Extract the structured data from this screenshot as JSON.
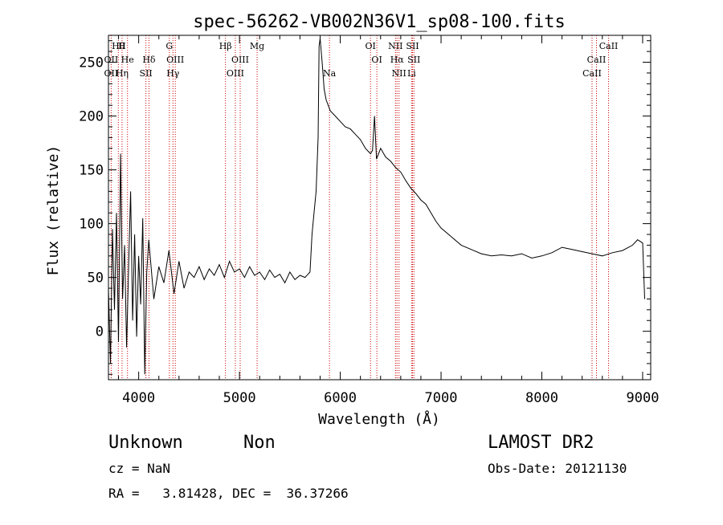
{
  "chart_data": {
    "type": "line",
    "title": "spec-56262-VB002N36V1_sp08-100.fits",
    "xlabel": "Wavelength (Å)",
    "ylabel": "Flux (relative)",
    "xlim": [
      3700,
      9080
    ],
    "ylim": [
      -45,
      275
    ],
    "x_ticks": [
      4000,
      5000,
      6000,
      7000,
      8000,
      9000
    ],
    "y_ticks": [
      0,
      50,
      100,
      150,
      200,
      250
    ],
    "grid": false,
    "series": [
      {
        "x": [
          3700,
          3720,
          3740,
          3760,
          3780,
          3800,
          3820,
          3840,
          3860,
          3880,
          3900,
          3920,
          3940,
          3960,
          3980,
          4000,
          4020,
          4040,
          4060,
          4080,
          4100,
          4150,
          4200,
          4250,
          4300,
          4350,
          4400,
          4450,
          4500,
          4550,
          4600,
          4650,
          4700,
          4750,
          4800,
          4850,
          4900,
          4950,
          5000,
          5050,
          5100,
          5150,
          5200,
          5250,
          5300,
          5350,
          5400,
          5450,
          5500,
          5550,
          5600,
          5650,
          5700,
          5720,
          5740,
          5760,
          5780,
          5790,
          5800,
          5820,
          5840,
          5860,
          5880,
          5900,
          5950,
          6000,
          6050,
          6100,
          6150,
          6200,
          6250,
          6300,
          6320,
          6340,
          6360,
          6400,
          6450,
          6500,
          6550,
          6600,
          6650,
          6700,
          6750,
          6800,
          6850,
          6900,
          6950,
          7000,
          7100,
          7200,
          7300,
          7400,
          7500,
          7600,
          7700,
          7800,
          7900,
          8000,
          8100,
          8200,
          8300,
          8400,
          8500,
          8600,
          8700,
          8800,
          8900,
          8950,
          9000,
          9020
        ],
        "y": [
          40,
          -30,
          95,
          20,
          110,
          -10,
          165,
          30,
          80,
          -15,
          60,
          130,
          10,
          90,
          -5,
          70,
          25,
          105,
          -40,
          55,
          85,
          30,
          60,
          45,
          75,
          35,
          65,
          40,
          55,
          50,
          60,
          48,
          58,
          52,
          62,
          50,
          65,
          55,
          58,
          50,
          60,
          52,
          55,
          48,
          57,
          50,
          53,
          45,
          55,
          48,
          52,
          50,
          55,
          90,
          110,
          130,
          180,
          265,
          272,
          250,
          225,
          215,
          210,
          205,
          200,
          195,
          190,
          188,
          183,
          178,
          170,
          165,
          168,
          200,
          160,
          170,
          162,
          158,
          152,
          148,
          140,
          133,
          128,
          122,
          118,
          110,
          102,
          96,
          88,
          80,
          76,
          72,
          70,
          71,
          70,
          72,
          68,
          70,
          73,
          78,
          76,
          74,
          72,
          70,
          73,
          75,
          80,
          85,
          82,
          30
        ]
      }
    ],
    "line_markers": [
      {
        "label": "Hθ",
        "x": 3798,
        "row": 0
      },
      {
        "label": "H",
        "x": 3835,
        "row": 0
      },
      {
        "label": "G",
        "x": 4304,
        "row": 0
      },
      {
        "label": "Hβ",
        "x": 4861,
        "row": 0
      },
      {
        "label": "Mg",
        "x": 5175,
        "row": 0
      },
      {
        "label": "OI",
        "x": 6300,
        "row": 0
      },
      {
        "label": "NII",
        "x": 6548,
        "row": 0
      },
      {
        "label": "SII",
        "x": 6717,
        "row": 0
      },
      {
        "label": "CaII",
        "x": 8662,
        "row": 0
      },
      {
        "label": "OII",
        "x": 3727,
        "row": 1
      },
      {
        "label": "He",
        "x": 3889,
        "row": 1
      },
      {
        "label": "Hδ",
        "x": 4102,
        "row": 1
      },
      {
        "label": "OIII",
        "x": 4363,
        "row": 1
      },
      {
        "label": "OIII",
        "x": 5007,
        "row": 1
      },
      {
        "label": "OI",
        "x": 6363,
        "row": 1
      },
      {
        "label": "Hα",
        "x": 6563,
        "row": 1
      },
      {
        "label": "SII",
        "x": 6731,
        "row": 1
      },
      {
        "label": "CaII",
        "x": 8542,
        "row": 1
      },
      {
        "label": "OII",
        "x": 3727,
        "row": 2
      },
      {
        "label": "Hη",
        "x": 3835,
        "row": 2
      },
      {
        "label": "SII",
        "x": 4072,
        "row": 2
      },
      {
        "label": "Hγ",
        "x": 4340,
        "row": 2
      },
      {
        "label": "OIII",
        "x": 4959,
        "row": 2
      },
      {
        "label": "Na",
        "x": 5893,
        "row": 2
      },
      {
        "label": "NII",
        "x": 6583,
        "row": 2
      },
      {
        "label": "Li",
        "x": 6708,
        "row": 2
      },
      {
        "label": "CaII",
        "x": 8498,
        "row": 2
      }
    ],
    "marker_color": "#cc0000"
  },
  "info": {
    "object_class": "Unknown",
    "object_subclass": "Non",
    "survey": "LAMOST DR2",
    "redshift_line": "cz = NaN",
    "obs_date_line": "Obs-Date: 20121130",
    "coords_line": "RA =   3.81428, DEC =  36.37266"
  }
}
